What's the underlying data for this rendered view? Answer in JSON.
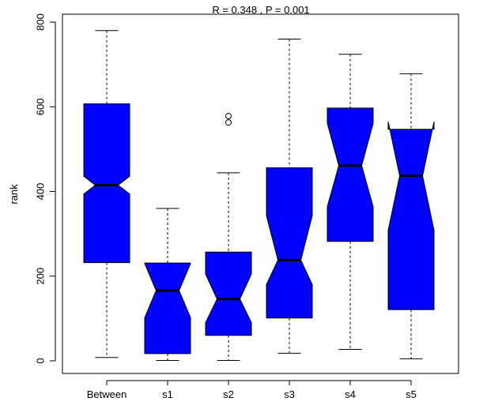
{
  "chart_data": {
    "type": "boxplot",
    "title": "R =  0.348 ,  P =  0.001",
    "xlabel": "",
    "ylabel": "rank",
    "ylim": [
      -10,
      800
    ],
    "yticks": [
      0,
      200,
      400,
      600,
      800
    ],
    "grid": false,
    "notched": true,
    "categories": [
      "Between",
      "s1",
      "s2",
      "s3",
      "s4",
      "s5"
    ],
    "boxes": [
      {
        "label": "Between",
        "whisker_low": 8,
        "q1": 232,
        "median": 415,
        "q3": 607,
        "whisker_high": 780,
        "notch_low": 394,
        "notch_high": 436,
        "outliers": []
      },
      {
        "label": "s1",
        "whisker_low": 1,
        "q1": 17,
        "median": 166,
        "q3": 231,
        "whisker_high": 360,
        "notch_low": 102,
        "notch_high": 230,
        "outliers": []
      },
      {
        "label": "s2",
        "whisker_low": 1,
        "q1": 60,
        "median": 146,
        "q3": 257,
        "whisker_high": 444,
        "notch_low": 90,
        "notch_high": 205,
        "outliers": [
          563,
          578
        ]
      },
      {
        "label": "s3",
        "whisker_low": 18,
        "q1": 101,
        "median": 238,
        "q3": 456,
        "whisker_high": 760,
        "notch_low": 180,
        "notch_high": 343,
        "outliers": []
      },
      {
        "label": "s4",
        "whisker_low": 27,
        "q1": 282,
        "median": 461,
        "q3": 597,
        "whisker_high": 724,
        "notch_low": 364,
        "notch_high": 561,
        "outliers": []
      },
      {
        "label": "s5",
        "whisker_low": 5,
        "q1": 121,
        "median": 437,
        "q3": 547,
        "whisker_high": 678,
        "notch_low": 308,
        "notch_high": 565,
        "outliers": []
      }
    ],
    "colors": {
      "box_fill": "#0000ff",
      "line": "#000000",
      "background": "#ffffff"
    }
  }
}
